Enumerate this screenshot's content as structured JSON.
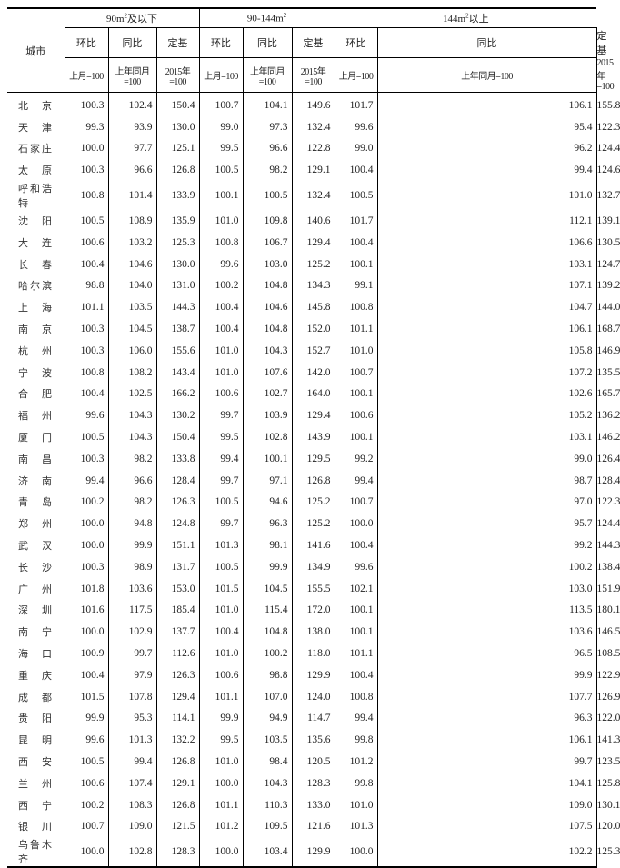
{
  "header": {
    "city_label": "城市",
    "groups": [
      {
        "label_pre": "90m",
        "sup": "2",
        "label_post": "及以下"
      },
      {
        "label_pre": "90-144m",
        "sup": "2",
        "label_post": ""
      },
      {
        "label_pre": "144m",
        "sup": "2",
        "label_post": "以上"
      }
    ],
    "sub": [
      "环比",
      "同比",
      "定基"
    ],
    "base": [
      "上月=100",
      "上年同月=100",
      "2015年=100"
    ]
  },
  "rows": [
    {
      "city": "北京",
      "v": [
        "100.3",
        "102.4",
        "150.4",
        "100.7",
        "104.1",
        "149.6",
        "101.7",
        "106.1",
        "155.8"
      ]
    },
    {
      "city": "天津",
      "v": [
        "99.3",
        "93.9",
        "130.0",
        "99.0",
        "97.3",
        "132.4",
        "99.6",
        "95.4",
        "122.3"
      ]
    },
    {
      "city": "石家庄",
      "v": [
        "100.0",
        "97.7",
        "125.1",
        "99.5",
        "96.6",
        "122.8",
        "99.0",
        "96.2",
        "124.4"
      ]
    },
    {
      "city": "太原",
      "v": [
        "100.3",
        "96.6",
        "126.8",
        "100.5",
        "98.2",
        "129.1",
        "100.4",
        "99.4",
        "124.6"
      ]
    },
    {
      "city": "呼和浩特",
      "v": [
        "100.8",
        "101.4",
        "133.9",
        "100.1",
        "100.5",
        "132.4",
        "100.5",
        "101.0",
        "132.7"
      ]
    },
    {
      "city": "沈阳",
      "v": [
        "100.5",
        "108.9",
        "135.9",
        "101.0",
        "109.8",
        "140.6",
        "101.7",
        "112.1",
        "139.1"
      ]
    },
    {
      "city": "大连",
      "v": [
        "100.6",
        "103.2",
        "125.3",
        "100.8",
        "106.7",
        "129.4",
        "100.4",
        "106.6",
        "130.5"
      ]
    },
    {
      "city": "长春",
      "v": [
        "100.4",
        "104.6",
        "130.0",
        "99.6",
        "103.0",
        "125.2",
        "100.1",
        "103.1",
        "124.7"
      ]
    },
    {
      "city": "哈尔滨",
      "v": [
        "98.8",
        "104.0",
        "131.0",
        "100.2",
        "104.8",
        "134.3",
        "99.1",
        "107.1",
        "139.2"
      ]
    },
    {
      "city": "上海",
      "v": [
        "101.1",
        "103.5",
        "144.3",
        "100.4",
        "104.6",
        "145.8",
        "100.8",
        "104.7",
        "144.0"
      ]
    },
    {
      "city": "南京",
      "v": [
        "100.3",
        "104.5",
        "138.7",
        "100.4",
        "104.8",
        "152.0",
        "101.1",
        "106.1",
        "168.7"
      ]
    },
    {
      "city": "杭州",
      "v": [
        "100.3",
        "106.0",
        "155.6",
        "101.0",
        "104.3",
        "152.7",
        "101.0",
        "105.8",
        "146.9"
      ]
    },
    {
      "city": "宁波",
      "v": [
        "100.8",
        "108.2",
        "143.4",
        "101.0",
        "107.6",
        "142.0",
        "100.7",
        "107.2",
        "135.5"
      ]
    },
    {
      "city": "合肥",
      "v": [
        "100.4",
        "102.5",
        "166.2",
        "100.6",
        "102.7",
        "164.0",
        "100.1",
        "102.6",
        "165.7"
      ]
    },
    {
      "city": "福州",
      "v": [
        "99.6",
        "104.3",
        "130.2",
        "99.7",
        "103.9",
        "129.4",
        "100.6",
        "105.2",
        "136.2"
      ]
    },
    {
      "city": "厦门",
      "v": [
        "100.5",
        "104.3",
        "150.4",
        "99.5",
        "102.8",
        "143.9",
        "100.1",
        "103.1",
        "146.2"
      ]
    },
    {
      "city": "南昌",
      "v": [
        "100.3",
        "98.2",
        "133.8",
        "99.4",
        "100.1",
        "129.5",
        "99.2",
        "99.0",
        "126.4"
      ]
    },
    {
      "city": "济南",
      "v": [
        "99.4",
        "96.6",
        "128.4",
        "99.7",
        "97.1",
        "126.8",
        "99.4",
        "98.7",
        "128.4"
      ]
    },
    {
      "city": "青岛",
      "v": [
        "100.2",
        "98.2",
        "126.3",
        "100.5",
        "94.6",
        "125.2",
        "100.7",
        "97.0",
        "122.3"
      ]
    },
    {
      "city": "郑州",
      "v": [
        "100.0",
        "94.8",
        "124.8",
        "99.7",
        "96.3",
        "125.2",
        "100.0",
        "95.7",
        "124.4"
      ]
    },
    {
      "city": "武汉",
      "v": [
        "100.0",
        "99.9",
        "151.1",
        "101.3",
        "98.1",
        "141.6",
        "100.4",
        "99.2",
        "144.3"
      ]
    },
    {
      "city": "长沙",
      "v": [
        "100.3",
        "98.9",
        "131.7",
        "100.5",
        "99.9",
        "134.9",
        "99.6",
        "100.2",
        "138.4"
      ]
    },
    {
      "city": "广州",
      "v": [
        "101.8",
        "103.6",
        "153.0",
        "101.5",
        "104.5",
        "155.5",
        "102.1",
        "103.0",
        "151.9"
      ]
    },
    {
      "city": "深圳",
      "v": [
        "101.6",
        "117.5",
        "185.4",
        "101.0",
        "115.4",
        "172.0",
        "100.1",
        "113.5",
        "180.1"
      ]
    },
    {
      "city": "南宁",
      "v": [
        "100.0",
        "102.9",
        "137.7",
        "100.4",
        "104.8",
        "138.0",
        "100.1",
        "103.6",
        "146.5"
      ]
    },
    {
      "city": "海口",
      "v": [
        "100.9",
        "99.7",
        "112.6",
        "101.0",
        "100.2",
        "118.0",
        "101.1",
        "96.5",
        "108.5"
      ]
    },
    {
      "city": "重庆",
      "v": [
        "100.4",
        "97.9",
        "126.3",
        "100.6",
        "98.8",
        "129.9",
        "100.4",
        "99.9",
        "122.9"
      ]
    },
    {
      "city": "成都",
      "v": [
        "101.5",
        "107.8",
        "129.4",
        "101.1",
        "107.0",
        "124.0",
        "100.8",
        "107.7",
        "126.9"
      ]
    },
    {
      "city": "贵阳",
      "v": [
        "99.9",
        "95.3",
        "114.1",
        "99.9",
        "94.9",
        "114.7",
        "99.4",
        "96.3",
        "122.0"
      ]
    },
    {
      "city": "昆明",
      "v": [
        "99.6",
        "101.3",
        "132.2",
        "99.5",
        "103.5",
        "135.6",
        "99.8",
        "106.1",
        "141.3"
      ]
    },
    {
      "city": "西安",
      "v": [
        "100.5",
        "99.4",
        "126.8",
        "101.0",
        "98.4",
        "120.5",
        "101.2",
        "99.7",
        "123.5"
      ]
    },
    {
      "city": "兰州",
      "v": [
        "100.6",
        "107.4",
        "129.1",
        "100.0",
        "104.3",
        "128.3",
        "99.8",
        "104.1",
        "125.8"
      ]
    },
    {
      "city": "西宁",
      "v": [
        "100.2",
        "108.3",
        "126.8",
        "101.1",
        "110.3",
        "133.0",
        "101.0",
        "109.0",
        "130.1"
      ]
    },
    {
      "city": "银川",
      "v": [
        "100.7",
        "109.0",
        "121.5",
        "101.2",
        "109.5",
        "121.6",
        "101.3",
        "107.5",
        "120.0"
      ]
    },
    {
      "city": "乌鲁木齐",
      "v": [
        "100.0",
        "102.8",
        "128.3",
        "100.0",
        "103.4",
        "129.9",
        "100.0",
        "102.2",
        "125.3"
      ]
    }
  ]
}
